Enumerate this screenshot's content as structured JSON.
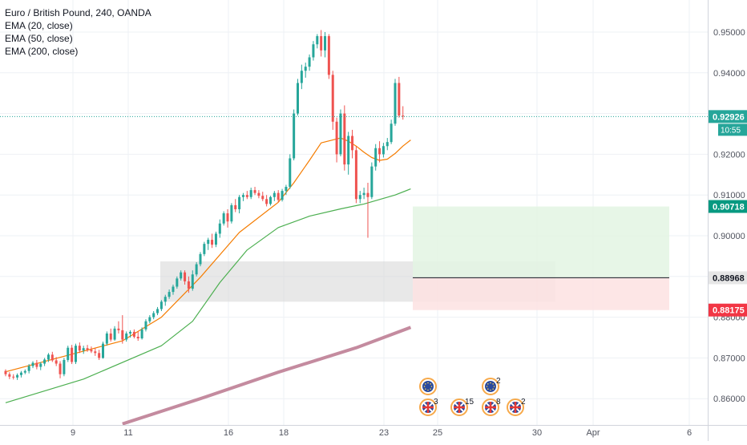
{
  "legend": {
    "title": "Euro / British Pound, 240, OANDA",
    "ema20": "EMA (20, close)",
    "ema50": "EMA (50, close)",
    "ema200": "EMA (200, close)"
  },
  "colors": {
    "up": "#26a69a",
    "down": "#ef5350",
    "ema20": "#f57c00",
    "ema50": "#4caf50",
    "ema200": "#c48b9f",
    "grid": "#eef1f5",
    "axis_text": "#50535e",
    "target_zone": "#e3f4e3",
    "stop_zone": "#fde2e2",
    "consolidation_box": "#d9d9d9"
  },
  "chart_data": {
    "type": "candlestick",
    "symbol": "Euro / British Pound",
    "interval": "240",
    "source": "OANDA",
    "x_tick_labels": [
      "9",
      "11",
      "16",
      "18",
      "23",
      "25",
      "30",
      "Apr",
      "6"
    ],
    "y_tick_labels": [
      "0.95000",
      "0.94000",
      "0.93000",
      "0.92000",
      "0.91000",
      "0.90000",
      "0.89000",
      "0.88000",
      "0.87000",
      "0.86000"
    ],
    "ylim": [
      0.8548,
      0.9568
    ],
    "current_price": "0.92926",
    "countdown": "10:55",
    "price_labels": {
      "target": "0.90718",
      "entry": "0.88968",
      "stop": "0.88175"
    },
    "target": 0.90718,
    "entry": 0.88968,
    "stop": 0.88175,
    "consolidation_zone": [
      0.8838,
      0.8937
    ],
    "ohlc": [
      [
        0.8668,
        0.8672,
        0.8655,
        0.866
      ],
      [
        0.866,
        0.8665,
        0.8648,
        0.8654
      ],
      [
        0.8654,
        0.866,
        0.8647,
        0.8652
      ],
      [
        0.8652,
        0.8662,
        0.8646,
        0.8658
      ],
      [
        0.8658,
        0.8668,
        0.8652,
        0.8664
      ],
      [
        0.8664,
        0.8672,
        0.866,
        0.8668
      ],
      [
        0.8668,
        0.8685,
        0.8662,
        0.868
      ],
      [
        0.868,
        0.8692,
        0.8675,
        0.8688
      ],
      [
        0.8688,
        0.8695,
        0.8672,
        0.8678
      ],
      [
        0.8678,
        0.869,
        0.867,
        0.8686
      ],
      [
        0.8686,
        0.87,
        0.868,
        0.8696
      ],
      [
        0.8696,
        0.8712,
        0.869,
        0.8708
      ],
      [
        0.8708,
        0.8715,
        0.869,
        0.8694
      ],
      [
        0.8694,
        0.8702,
        0.868,
        0.8686
      ],
      [
        0.8686,
        0.8692,
        0.865,
        0.866
      ],
      [
        0.866,
        0.87,
        0.8655,
        0.8695
      ],
      [
        0.8695,
        0.873,
        0.869,
        0.8725
      ],
      [
        0.8725,
        0.8732,
        0.8685,
        0.869
      ],
      [
        0.869,
        0.8735,
        0.8685,
        0.873
      ],
      [
        0.873,
        0.8738,
        0.8712,
        0.8718
      ],
      [
        0.8718,
        0.873,
        0.871,
        0.8724
      ],
      [
        0.8724,
        0.8732,
        0.8715,
        0.872
      ],
      [
        0.872,
        0.8728,
        0.8712,
        0.8716
      ],
      [
        0.8716,
        0.8725,
        0.8705,
        0.8712
      ],
      [
        0.8712,
        0.872,
        0.8695,
        0.87
      ],
      [
        0.87,
        0.874,
        0.8698,
        0.8735
      ],
      [
        0.8735,
        0.8765,
        0.873,
        0.876
      ],
      [
        0.876,
        0.8772,
        0.874,
        0.8745
      ],
      [
        0.8745,
        0.8778,
        0.8742,
        0.8772
      ],
      [
        0.8772,
        0.879,
        0.876,
        0.8768
      ],
      [
        0.8768,
        0.8805,
        0.8735,
        0.8745
      ],
      [
        0.8745,
        0.8765,
        0.874,
        0.876
      ],
      [
        0.876,
        0.8768,
        0.875,
        0.8764
      ],
      [
        0.8764,
        0.877,
        0.8748,
        0.8752
      ],
      [
        0.8752,
        0.8765,
        0.8742,
        0.8748
      ],
      [
        0.8748,
        0.8775,
        0.8745,
        0.877
      ],
      [
        0.877,
        0.8795,
        0.8765,
        0.879
      ],
      [
        0.879,
        0.8805,
        0.8785,
        0.88
      ],
      [
        0.88,
        0.8815,
        0.8795,
        0.881
      ],
      [
        0.881,
        0.8825,
        0.8805,
        0.882
      ],
      [
        0.882,
        0.8842,
        0.8815,
        0.8838
      ],
      [
        0.8838,
        0.8855,
        0.8828,
        0.885
      ],
      [
        0.885,
        0.8868,
        0.8845,
        0.8862
      ],
      [
        0.8862,
        0.888,
        0.8855,
        0.8875
      ],
      [
        0.8875,
        0.89,
        0.887,
        0.8895
      ],
      [
        0.8895,
        0.8915,
        0.889,
        0.891
      ],
      [
        0.891,
        0.8915,
        0.888,
        0.8888
      ],
      [
        0.8888,
        0.89,
        0.886,
        0.887
      ],
      [
        0.887,
        0.8915,
        0.8865,
        0.8905
      ],
      [
        0.8905,
        0.8935,
        0.89,
        0.893
      ],
      [
        0.893,
        0.896,
        0.8925,
        0.8955
      ],
      [
        0.8955,
        0.8985,
        0.895,
        0.898
      ],
      [
        0.898,
        0.8995,
        0.8965,
        0.899
      ],
      [
        0.899,
        0.9005,
        0.897,
        0.8978
      ],
      [
        0.8978,
        0.901,
        0.8972,
        0.9005
      ],
      [
        0.9005,
        0.904,
        0.8995,
        0.903
      ],
      [
        0.903,
        0.906,
        0.9025,
        0.9055
      ],
      [
        0.9055,
        0.9065,
        0.902,
        0.9035
      ],
      [
        0.9035,
        0.908,
        0.903,
        0.9075
      ],
      [
        0.9075,
        0.909,
        0.9058,
        0.9065
      ],
      [
        0.9065,
        0.91,
        0.9055,
        0.9095
      ],
      [
        0.9095,
        0.9105,
        0.9085,
        0.91
      ],
      [
        0.91,
        0.911,
        0.909,
        0.9095
      ],
      [
        0.9095,
        0.9118,
        0.909,
        0.9112
      ],
      [
        0.9112,
        0.912,
        0.91,
        0.9105
      ],
      [
        0.9105,
        0.9112,
        0.9092,
        0.9098
      ],
      [
        0.9098,
        0.9108,
        0.9085,
        0.909
      ],
      [
        0.909,
        0.91,
        0.9072,
        0.9078
      ],
      [
        0.9078,
        0.9098,
        0.9074,
        0.9095
      ],
      [
        0.9095,
        0.911,
        0.9085,
        0.9105
      ],
      [
        0.9105,
        0.9112,
        0.9082,
        0.9088
      ],
      [
        0.9088,
        0.9115,
        0.9084,
        0.911
      ],
      [
        0.911,
        0.9125,
        0.91,
        0.912
      ],
      [
        0.912,
        0.92,
        0.9115,
        0.919
      ],
      [
        0.919,
        0.931,
        0.9185,
        0.93
      ],
      [
        0.93,
        0.9385,
        0.9295,
        0.9375
      ],
      [
        0.9375,
        0.942,
        0.936,
        0.9405
      ],
      [
        0.9405,
        0.9425,
        0.9388,
        0.9415
      ],
      [
        0.9415,
        0.9445,
        0.9405,
        0.9438
      ],
      [
        0.9438,
        0.9478,
        0.943,
        0.947
      ],
      [
        0.947,
        0.9495,
        0.946,
        0.949
      ],
      [
        0.949,
        0.9505,
        0.944,
        0.9455
      ],
      [
        0.9455,
        0.95,
        0.9438,
        0.949
      ],
      [
        0.949,
        0.9495,
        0.9385,
        0.9395
      ],
      [
        0.9395,
        0.9405,
        0.926,
        0.928
      ],
      [
        0.928,
        0.929,
        0.918,
        0.92
      ],
      [
        0.92,
        0.931,
        0.9195,
        0.93
      ],
      [
        0.93,
        0.932,
        0.916,
        0.9175
      ],
      [
        0.9175,
        0.9255,
        0.915,
        0.9245
      ],
      [
        0.9245,
        0.926,
        0.919,
        0.921
      ],
      [
        0.921,
        0.922,
        0.908,
        0.909
      ],
      [
        0.909,
        0.911,
        0.908,
        0.91
      ],
      [
        0.91,
        0.9118,
        0.909,
        0.9105
      ],
      [
        0.9105,
        0.913,
        0.8995,
        0.9095
      ],
      [
        0.9095,
        0.918,
        0.909,
        0.917
      ],
      [
        0.917,
        0.9225,
        0.916,
        0.9215
      ],
      [
        0.9215,
        0.9232,
        0.918,
        0.92
      ],
      [
        0.92,
        0.9228,
        0.9192,
        0.922
      ],
      [
        0.922,
        0.924,
        0.921,
        0.923
      ],
      [
        0.923,
        0.9285,
        0.9225,
        0.9275
      ],
      [
        0.9275,
        0.9385,
        0.927,
        0.9375
      ],
      [
        0.9375,
        0.939,
        0.929,
        0.9295
      ],
      [
        0.9295,
        0.9318,
        0.9285,
        0.9293
      ]
    ],
    "ema20": [
      [
        0,
        0.8666
      ],
      [
        30,
        0.8742
      ],
      [
        40,
        0.88
      ],
      [
        50,
        0.8898
      ],
      [
        60,
        0.9008
      ],
      [
        70,
        0.9082
      ],
      [
        74,
        0.913
      ],
      [
        78,
        0.9185
      ],
      [
        81,
        0.9228
      ],
      [
        86,
        0.924
      ],
      [
        88,
        0.9232
      ],
      [
        90,
        0.922
      ],
      [
        92,
        0.9205
      ],
      [
        94,
        0.9192
      ],
      [
        96,
        0.9185
      ],
      [
        98,
        0.9188
      ],
      [
        100,
        0.9202
      ],
      [
        102,
        0.922
      ],
      [
        104,
        0.9235
      ]
    ],
    "ema50": [
      [
        0,
        0.859
      ],
      [
        20,
        0.8648
      ],
      [
        40,
        0.873
      ],
      [
        48,
        0.879
      ],
      [
        55,
        0.8885
      ],
      [
        62,
        0.8965
      ],
      [
        70,
        0.902
      ],
      [
        78,
        0.9048
      ],
      [
        86,
        0.9066
      ],
      [
        92,
        0.9078
      ],
      [
        100,
        0.91
      ],
      [
        104,
        0.9115
      ]
    ],
    "ema200": [
      [
        30,
        0.8538
      ],
      [
        50,
        0.86
      ],
      [
        70,
        0.8665
      ],
      [
        90,
        0.8725
      ],
      [
        104,
        0.8775
      ]
    ],
    "events": [
      {
        "row": "eu",
        "label": ""
      },
      {
        "row": "eu",
        "label": "2"
      },
      {
        "row": "uk",
        "label": "3"
      },
      {
        "row": "uk",
        "label": "15"
      },
      {
        "row": "uk",
        "label": "8"
      },
      {
        "row": "uk",
        "label": "2"
      }
    ]
  }
}
